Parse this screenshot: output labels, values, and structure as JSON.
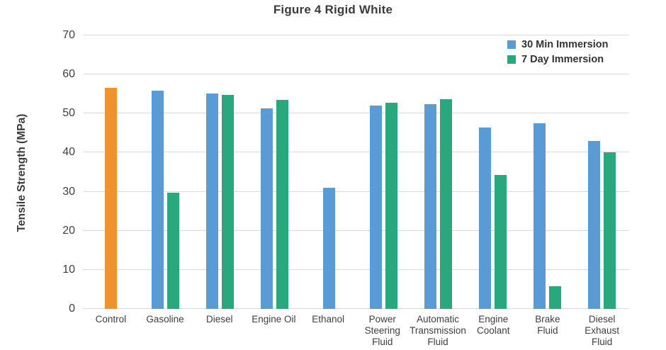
{
  "title": "Figure 4 Rigid White",
  "chart_data": {
    "type": "bar",
    "title": "Figure 4 Rigid White",
    "xlabel": "",
    "ylabel": "Tensile Strength (MPa)",
    "ylim": [
      0,
      70
    ],
    "yticks": [
      0,
      10,
      20,
      30,
      40,
      50,
      60,
      70
    ],
    "grid": true,
    "legend_position": "top-right-inside",
    "categories": [
      "Control",
      "Gasoline",
      "Diesel",
      "Engine Oil",
      "Ethanol",
      "Power Steering Fluid",
      "Automatic Transmission Fluid",
      "Engine Coolant",
      "Brake Fluid",
      "Diesel Exhaust Fluid"
    ],
    "category_labels": [
      "Control",
      "Gasoline",
      "Diesel",
      "Engine Oil",
      "Ethanol",
      "Power\nSteering\nFluid",
      "Automatic\nTransmission\nFluid",
      "Engine\nCoolant",
      "Brake\nFluid",
      "Diesel\nExhaust\nFluid"
    ],
    "series": [
      {
        "name": "30 Min Immersion",
        "color": "#5B9BD5",
        "values": [
          null,
          55.9,
          55.1,
          51.4,
          31.0,
          52.0,
          52.4,
          46.5,
          47.5,
          42.9
        ]
      },
      {
        "name": "7 Day Immersion",
        "color": "#29A87E",
        "values": [
          null,
          29.8,
          54.8,
          53.5,
          null,
          52.8,
          53.7,
          34.3,
          5.8,
          40.0
        ]
      }
    ],
    "control_series": {
      "name": "Control",
      "color": "#F0922D",
      "values": [
        56.6,
        null,
        null,
        null,
        null,
        null,
        null,
        null,
        null,
        null
      ]
    },
    "colors": {
      "bar_blue": "#5B9BD5",
      "bar_green": "#29A87E",
      "bar_orange": "#F0922D",
      "gridline": "#D9D9D9",
      "axis_text": "#3F3F3F",
      "title_text": "#3B3B3B"
    }
  }
}
